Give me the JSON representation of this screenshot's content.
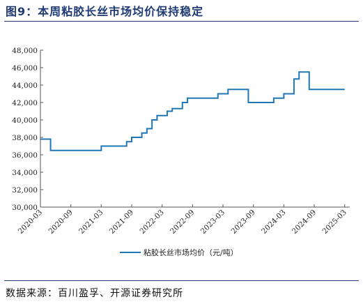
{
  "figure_title": "图9：本周粘胶长丝市场均价保持稳定",
  "source_note": "数据来源：百川盈孚、开源证券研究所",
  "chart_data": {
    "type": "line",
    "title": "",
    "xlabel": "",
    "ylabel": "",
    "ylim": [
      30000,
      48000
    ],
    "yticks": [
      "30,000",
      "32,000",
      "34,000",
      "36,000",
      "38,000",
      "40,000",
      "42,000",
      "44,000",
      "46,000",
      "48,000"
    ],
    "xticks": [
      "2020-03",
      "2020-09",
      "2021-03",
      "2021-09",
      "2022-03",
      "2022-09",
      "2023-03",
      "2023-09",
      "2024-03",
      "2024-09",
      "2025-03"
    ],
    "xlim": [
      "2020-03",
      "2025-04"
    ],
    "grid": false,
    "legend_position": "bottom-center",
    "series": [
      {
        "name": "粘胶长丝市场均价（元/吨）",
        "color": "#1f77b4",
        "step": true,
        "points": [
          [
            "2020-03",
            37800
          ],
          [
            "2020-05",
            36500
          ],
          [
            "2021-03",
            37000
          ],
          [
            "2021-08",
            37500
          ],
          [
            "2021-09",
            38000
          ],
          [
            "2021-11",
            38500
          ],
          [
            "2021-12",
            39000
          ],
          [
            "2022-01",
            39500
          ],
          [
            "2022-01",
            40000
          ],
          [
            "2022-02",
            40500
          ],
          [
            "2022-04",
            41000
          ],
          [
            "2022-05",
            41300
          ],
          [
            "2022-07",
            42000
          ],
          [
            "2022-08",
            42500
          ],
          [
            "2023-02",
            43000
          ],
          [
            "2023-04",
            43500
          ],
          [
            "2023-08",
            42000
          ],
          [
            "2024-01",
            42500
          ],
          [
            "2024-03",
            43000
          ],
          [
            "2024-05",
            43500
          ],
          [
            "2024-05",
            44700
          ],
          [
            "2024-06",
            45500
          ],
          [
            "2024-08",
            43500
          ],
          [
            "2025-03",
            43500
          ]
        ]
      }
    ]
  }
}
